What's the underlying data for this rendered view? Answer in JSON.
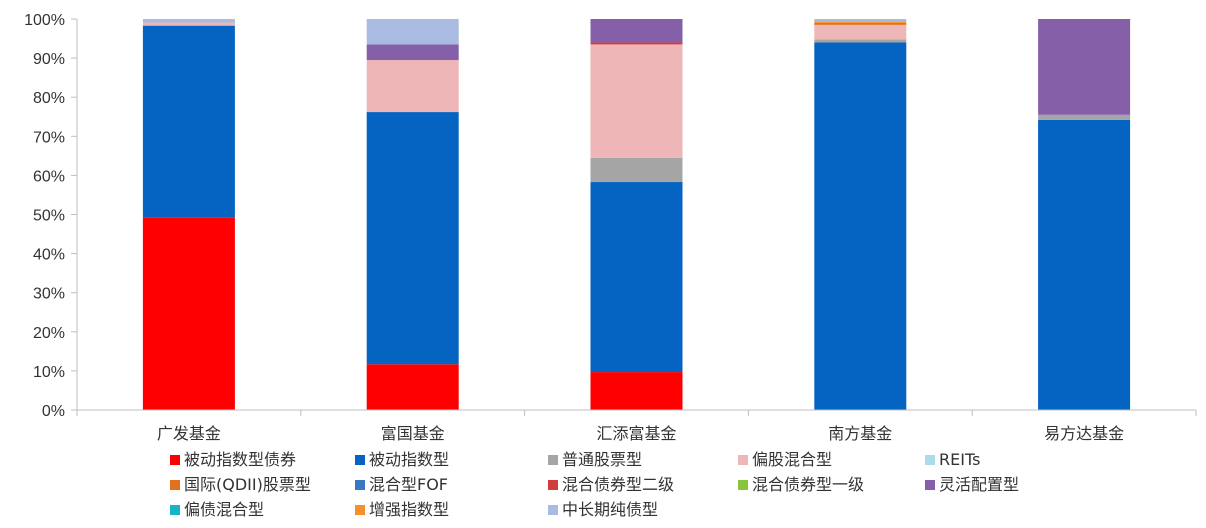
{
  "chart_data": {
    "type": "bar",
    "stacked": true,
    "percent": true,
    "title": "",
    "xlabel": "",
    "ylabel": "",
    "ylim": [
      0,
      100
    ],
    "yticks": [
      "0%",
      "10%",
      "20%",
      "30%",
      "40%",
      "50%",
      "60%",
      "70%",
      "80%",
      "90%",
      "100%"
    ],
    "grid": false,
    "legend_position": "bottom",
    "categories": [
      "广发基金",
      "富国基金",
      "汇添富基金",
      "南方基金",
      "易方达基金"
    ],
    "series": [
      {
        "name": "被动指数型债券",
        "color": "#ff0000",
        "values": [
          49.3,
          11.7,
          9.7,
          0,
          0
        ]
      },
      {
        "name": "被动指数型",
        "color": "#0563c1",
        "values": [
          49.0,
          64.5,
          48.6,
          94.0,
          74.2
        ]
      },
      {
        "name": "普通股票型",
        "color": "#a5a5a5",
        "values": [
          0,
          0,
          6.2,
          0.8,
          1.3
        ]
      },
      {
        "name": "偏股混合型",
        "color": "#eeb6b6",
        "values": [
          0.8,
          13.3,
          29.0,
          3.7,
          0
        ]
      },
      {
        "name": "REITs",
        "color": "#a9dce9",
        "values": [
          0,
          0,
          0,
          0,
          0
        ]
      },
      {
        "name": "国际(QDII)股票型",
        "color": "#e2711d",
        "values": [
          0,
          0,
          0,
          0.5,
          0
        ]
      },
      {
        "name": "混合型FOF",
        "color": "#3b78c3",
        "values": [
          0,
          0,
          0,
          0,
          0
        ]
      },
      {
        "name": "混合债券型二级",
        "color": "#d13c3c",
        "values": [
          0,
          0,
          0.5,
          0,
          0
        ]
      },
      {
        "name": "混合债券型一级",
        "color": "#8ac43f",
        "values": [
          0,
          0,
          0,
          0,
          0
        ]
      },
      {
        "name": "灵活配置型",
        "color": "#8560a8",
        "values": [
          0,
          4.0,
          6.0,
          0,
          24.5
        ]
      },
      {
        "name": "偏债混合型",
        "color": "#16b4c9",
        "values": [
          0,
          0,
          0,
          0,
          0
        ]
      },
      {
        "name": "增强指数型",
        "color": "#f7902b",
        "values": [
          0,
          0,
          0,
          0.4,
          0
        ]
      },
      {
        "name": "中长期纯债型",
        "color": "#a9bbe0",
        "values": [
          0.9,
          6.5,
          0,
          0.6,
          0
        ]
      }
    ]
  }
}
